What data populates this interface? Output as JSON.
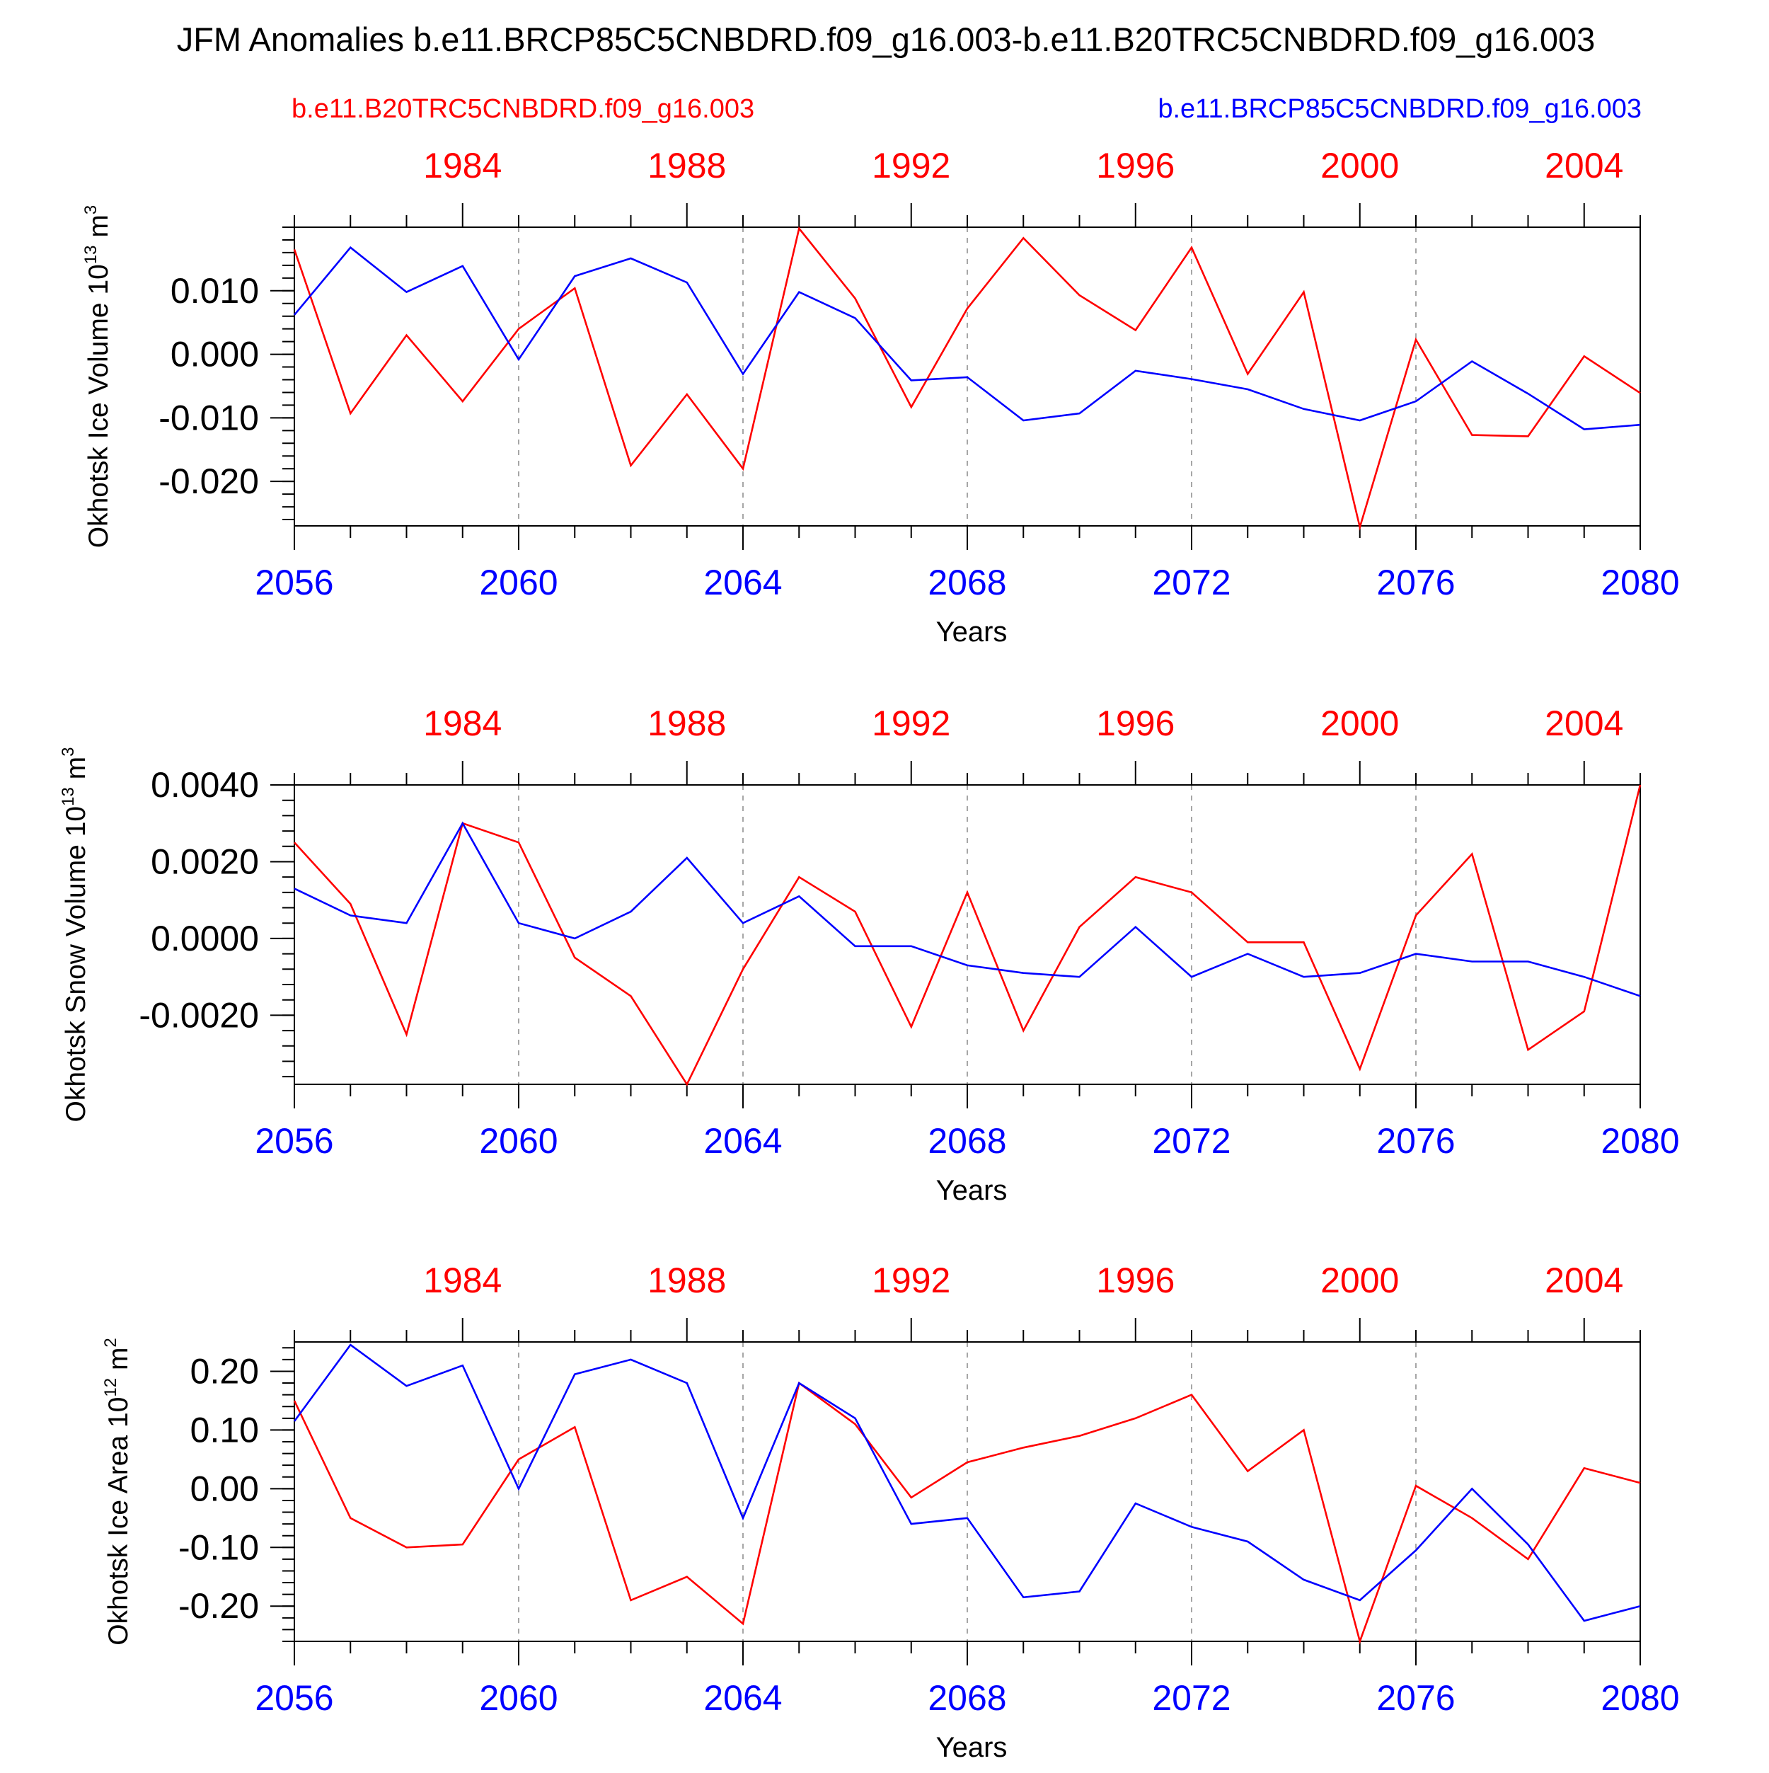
{
  "title": "JFM Anomalies b.e11.BRCP85C5CNBDRD.f09_g16.003-b.e11.B20TRC5CNBDRD.f09_g16.003",
  "legend_left": "b.e11.B20TRC5CNBDRD.f09_g16.003",
  "legend_right": "b.e11.BRCP85C5CNBDRD.f09_g16.003",
  "colors": {
    "historical": "#ff0000",
    "future": "#0000ff",
    "axis": "#000000",
    "grid": "#888888"
  },
  "chart_data": [
    {
      "type": "line",
      "ylabel": "Okhotsk Ice Volume",
      "ylabel_exp": "13",
      "ylabel_unit": "m",
      "ylabel_unit_exp": "3",
      "xlabel": "Years",
      "x_bottom_ticks": [
        "2056",
        "2060",
        "2064",
        "2068",
        "2072",
        "2076",
        "2080"
      ],
      "x_top_ticks": [
        "1984",
        "1988",
        "1992",
        "1996",
        "2000",
        "2004"
      ],
      "xlim": [
        2056,
        2080
      ],
      "x_top_start": 1981,
      "ylim": [
        -0.027,
        0.02
      ],
      "y_ticks": [
        0.01,
        0.0,
        -0.01,
        -0.02
      ],
      "y_tick_labels": [
        "0.010",
        "0.000",
        "-0.010",
        "-0.020"
      ],
      "y_minor_step": 0.002,
      "grid": "vertical dashed at bottom-axis ticks",
      "series": [
        {
          "name": "b.e11.B20TRC5CNBDRD.f09_g16.003",
          "color": "#ff0000",
          "values": [
            0.0165,
            -0.0093,
            0.003,
            -0.0074,
            0.004,
            0.0104,
            -0.0175,
            -0.0063,
            -0.018,
            0.0198,
            0.0088,
            -0.0083,
            0.0072,
            0.0183,
            0.0093,
            0.0038,
            0.0168,
            -0.0031,
            0.0098,
            -0.0272,
            0.0023,
            -0.0127,
            -0.0129,
            -0.0003,
            -0.0061
          ]
        },
        {
          "name": "b.e11.BRCP85C5CNBDRD.f09_g16.003",
          "color": "#0000ff",
          "values": [
            0.0062,
            0.0168,
            0.0098,
            0.0139,
            -0.0008,
            0.0123,
            0.0151,
            0.0113,
            -0.0031,
            0.0098,
            0.0057,
            -0.0041,
            -0.0036,
            -0.0104,
            -0.0093,
            -0.0026,
            -0.0039,
            -0.0055,
            -0.0086,
            -0.0104,
            -0.0074,
            -0.0011,
            -0.0062,
            -0.0118,
            -0.0111
          ]
        }
      ]
    },
    {
      "type": "line",
      "ylabel": "Okhotsk Snow Volume",
      "ylabel_exp": "13",
      "ylabel_unit": "m",
      "ylabel_unit_exp": "3",
      "xlabel": "Years",
      "x_bottom_ticks": [
        "2056",
        "2060",
        "2064",
        "2068",
        "2072",
        "2076",
        "2080"
      ],
      "x_top_ticks": [
        "1984",
        "1988",
        "1992",
        "1996",
        "2000",
        "2004"
      ],
      "xlim": [
        2056,
        2080
      ],
      "x_top_start": 1981,
      "ylim": [
        -0.0038,
        0.004
      ],
      "y_ticks": [
        0.004,
        0.002,
        0.0,
        -0.002
      ],
      "y_tick_labels": [
        "0.0040",
        "0.0020",
        "0.0000",
        "-0.0020"
      ],
      "y_minor_step": 0.0004,
      "grid": "vertical dashed at bottom-axis ticks",
      "series": [
        {
          "name": "b.e11.B20TRC5CNBDRD.f09_g16.003",
          "color": "#ff0000",
          "values": [
            0.0025,
            0.0009,
            -0.0025,
            0.003,
            0.0025,
            -0.0005,
            -0.0015,
            -0.0038,
            -0.0008,
            0.0016,
            0.0007,
            -0.0023,
            0.0012,
            -0.0024,
            0.0003,
            0.0016,
            0.0012,
            -0.0001,
            -0.0001,
            -0.0034,
            0.0006,
            0.0022,
            -0.0029,
            -0.0019,
            0.004
          ]
        },
        {
          "name": "b.e11.BRCP85C5CNBDRD.f09_g16.003",
          "color": "#0000ff",
          "values": [
            0.0013,
            0.0006,
            0.0004,
            0.003,
            0.0004,
            0.0,
            0.0007,
            0.0021,
            0.0004,
            0.0011,
            -0.0002,
            -0.0002,
            -0.0007,
            -0.0009,
            -0.001,
            0.0003,
            -0.001,
            -0.0004,
            -0.001,
            -0.0009,
            -0.0004,
            -0.0006,
            -0.0006,
            -0.001,
            -0.0015
          ]
        }
      ]
    },
    {
      "type": "line",
      "ylabel": "Okhotsk Ice Area",
      "ylabel_exp": "12",
      "ylabel_unit": "m",
      "ylabel_unit_exp": "2",
      "xlabel": "Years",
      "x_bottom_ticks": [
        "2056",
        "2060",
        "2064",
        "2068",
        "2072",
        "2076",
        "2080"
      ],
      "x_top_ticks": [
        "1984",
        "1988",
        "1992",
        "1996",
        "2000",
        "2004"
      ],
      "xlim": [
        2056,
        2080
      ],
      "x_top_start": 1981,
      "ylim": [
        -0.26,
        0.25
      ],
      "y_ticks": [
        0.2,
        0.1,
        0.0,
        -0.1,
        -0.2
      ],
      "y_tick_labels": [
        "0.20",
        "0.10",
        "0.00",
        "-0.10",
        "-0.20"
      ],
      "y_minor_step": 0.02,
      "grid": "vertical dashed at bottom-axis ticks",
      "series": [
        {
          "name": "b.e11.B20TRC5CNBDRD.f09_g16.003",
          "color": "#ff0000",
          "values": [
            0.15,
            -0.05,
            -0.1,
            -0.095,
            0.05,
            0.105,
            -0.19,
            -0.15,
            -0.23,
            0.18,
            0.11,
            -0.015,
            0.045,
            0.07,
            0.09,
            0.12,
            0.16,
            0.03,
            0.1,
            -0.26,
            0.005,
            -0.05,
            -0.12,
            0.035,
            0.01
          ]
        },
        {
          "name": "b.e11.BRCP85C5CNBDRD.f09_g16.003",
          "color": "#0000ff",
          "values": [
            0.115,
            0.245,
            0.175,
            0.21,
            0.0,
            0.195,
            0.22,
            0.18,
            -0.05,
            0.18,
            0.12,
            -0.06,
            -0.05,
            -0.185,
            -0.175,
            -0.025,
            -0.065,
            -0.09,
            -0.155,
            -0.19,
            -0.105,
            0.0,
            -0.095,
            -0.225,
            -0.2
          ]
        }
      ]
    }
  ]
}
